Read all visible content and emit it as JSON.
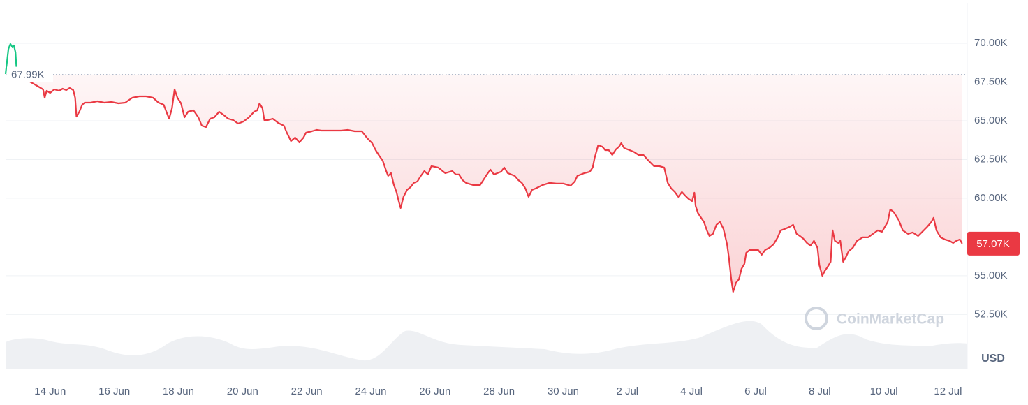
{
  "chart_data": {
    "type": "line",
    "x": [
      -1.39,
      -1.3,
      -1.24,
      -1.17,
      -1.13,
      -1.08,
      -1.04,
      -0.22,
      -0.17,
      -0.11,
      0,
      0.13,
      0.28,
      0.39,
      0.5,
      0.61,
      0.72,
      0.78,
      0.82,
      0.91,
      1.0,
      1.08,
      1.26,
      1.47,
      1.69,
      1.91,
      2.13,
      2.34,
      2.56,
      2.78,
      2.99,
      3.21,
      3.38,
      3.54,
      3.64,
      3.71,
      3.8,
      3.88,
      3.97,
      4.08,
      4.19,
      4.3,
      4.47,
      4.62,
      4.73,
      4.86,
      4.99,
      5.12,
      5.27,
      5.42,
      5.55,
      5.71,
      5.86,
      6.03,
      6.2,
      6.36,
      6.46,
      6.53,
      6.62,
      6.68,
      6.79,
      6.94,
      7.11,
      7.29,
      7.38,
      7.51,
      7.64,
      7.77,
      7.9,
      7.98,
      8.16,
      8.31,
      8.46,
      8.63,
      8.85,
      9.07,
      9.28,
      9.5,
      9.72,
      9.89,
      10.04,
      10.15,
      10.26,
      10.37,
      10.48,
      10.54,
      10.63,
      10.72,
      10.8,
      10.87,
      10.93,
      11.02,
      11.13,
      11.24,
      11.34,
      11.45,
      11.56,
      11.67,
      11.78,
      11.89,
      12.1,
      12.32,
      12.54,
      12.65,
      12.75,
      12.86,
      12.97,
      13.19,
      13.41,
      13.51,
      13.62,
      13.73,
      13.84,
      14.06,
      14.16,
      14.27,
      14.49,
      14.6,
      14.71,
      14.82,
      14.92,
      15.03,
      15.14,
      15.36,
      15.57,
      15.79,
      16.01,
      16.23,
      16.36,
      16.44,
      16.66,
      16.83,
      16.92,
      16.98,
      17.09,
      17.22,
      17.31,
      17.42,
      17.53,
      17.64,
      17.74,
      17.81,
      17.9,
      18.07,
      18.22,
      18.35,
      18.5,
      18.66,
      18.83,
      19.0,
      19.15,
      19.26,
      19.37,
      19.48,
      19.59,
      19.7,
      19.8,
      19.91,
      20.02,
      20.09,
      20.13,
      20.2,
      20.3,
      20.39,
      20.48,
      20.56,
      20.67,
      20.78,
      20.89,
      21.0,
      21.11,
      21.17,
      21.24,
      21.3,
      21.39,
      21.48,
      21.56,
      21.65,
      21.71,
      21.82,
      21.97,
      22.08,
      22.19,
      22.3,
      22.43,
      22.56,
      22.69,
      22.78,
      22.91,
      23.06,
      23.17,
      23.28,
      23.38,
      23.49,
      23.6,
      23.71,
      23.82,
      23.93,
      23.99,
      24.08,
      24.16,
      24.25,
      24.34,
      24.4,
      24.47,
      24.58,
      24.64,
      24.73,
      24.82,
      24.9,
      25.03,
      25.16,
      25.34,
      25.51,
      25.66,
      25.81,
      25.94,
      26.03,
      26.12,
      26.2,
      26.31,
      26.46,
      26.59,
      26.75,
      26.9,
      27.07,
      27.2,
      27.35,
      27.48,
      27.55,
      27.64,
      27.77,
      27.9,
      28.05,
      28.16,
      28.26,
      28.37,
      28.44
    ],
    "values": [
      68018,
      69640,
      69955,
      69730,
      69865,
      69414,
      68018,
      67027,
      66486,
      66937,
      66802,
      67027,
      66937,
      67072,
      66982,
      67117,
      66982,
      66486,
      65270,
      65586,
      66036,
      66171,
      66171,
      66261,
      66171,
      66216,
      66126,
      66171,
      66486,
      66577,
      66577,
      66486,
      66171,
      66036,
      65495,
      65135,
      65811,
      67027,
      66486,
      66126,
      65225,
      65586,
      65676,
      65225,
      64685,
      64595,
      65135,
      65225,
      65586,
      65360,
      65135,
      65045,
      64820,
      64955,
      65225,
      65586,
      65676,
      66126,
      65811,
      65045,
      65045,
      65135,
      64865,
      64685,
      64234,
      63694,
      63919,
      63604,
      63919,
      64234,
      64324,
      64414,
      64369,
      64369,
      64369,
      64369,
      64414,
      64324,
      64324,
      63874,
      63559,
      63108,
      62748,
      62432,
      61757,
      61441,
      61622,
      60856,
      60405,
      59820,
      59369,
      60090,
      60541,
      60721,
      60991,
      61081,
      61441,
      61757,
      61532,
      62072,
      61982,
      61622,
      61757,
      61532,
      61532,
      61171,
      60991,
      60856,
      60856,
      61171,
      61532,
      61847,
      61532,
      61712,
      61982,
      61622,
      61441,
      61171,
      60991,
      60631,
      60090,
      60541,
      60631,
      60856,
      60991,
      60946,
      60946,
      60811,
      61081,
      61441,
      61622,
      61712,
      61982,
      62613,
      63423,
      63333,
      63108,
      63108,
      62793,
      63153,
      63333,
      63559,
      63243,
      63108,
      62973,
      62793,
      62793,
      62432,
      62072,
      62072,
      61982,
      60991,
      60631,
      60405,
      60090,
      60405,
      60180,
      59955,
      59820,
      60360,
      59505,
      59054,
      58739,
      58468,
      57928,
      57568,
      57703,
      58288,
      58468,
      58018,
      57027,
      56126,
      54775,
      53964,
      54550,
      54775,
      55450,
      55766,
      56486,
      56667,
      56667,
      56667,
      56351,
      56667,
      56802,
      57027,
      57477,
      57928,
      58018,
      58153,
      58288,
      57703,
      57568,
      57387,
      57117,
      56937,
      57252,
      56802,
      55676,
      55000,
      55315,
      55586,
      55901,
      57928,
      57252,
      57117,
      57252,
      55901,
      56216,
      56577,
      56802,
      57252,
      57477,
      57477,
      57703,
      57928,
      57838,
      58153,
      58468,
      59279,
      59099,
      58604,
      57928,
      57703,
      57793,
      57568,
      57838,
      58153,
      58468,
      58739,
      57928,
      57477,
      57342,
      57252,
      57117,
      57252,
      57342,
      57070
    ],
    "reference": {
      "value": 67990,
      "label": "67.99K"
    },
    "current_price": {
      "value": 57070,
      "label": "57.07K"
    },
    "color_up": "#16c784",
    "color_down": "#ea3943",
    "xlim": [
      -1.39,
      28.6
    ],
    "xticks": [
      {
        "value": 0,
        "label": "14 Jun"
      },
      {
        "value": 2,
        "label": "16 Jun"
      },
      {
        "value": 4,
        "label": "18 Jun"
      },
      {
        "value": 6,
        "label": "20 Jun"
      },
      {
        "value": 8,
        "label": "22 Jun"
      },
      {
        "value": 10,
        "label": "24 Jun"
      },
      {
        "value": 12,
        "label": "26 Jun"
      },
      {
        "value": 14,
        "label": "28 Jun"
      },
      {
        "value": 16,
        "label": "30 Jun"
      },
      {
        "value": 18,
        "label": "2 Jul"
      },
      {
        "value": 20,
        "label": "4 Jul"
      },
      {
        "value": 22,
        "label": "6 Jul"
      },
      {
        "value": 24,
        "label": "8 Jul"
      },
      {
        "value": 26,
        "label": "10 Jul"
      },
      {
        "value": 28,
        "label": "12 Jul"
      }
    ],
    "ylim": [
      49000,
      72570
    ],
    "yticks": [
      {
        "value": 52500,
        "label": "52.50K"
      },
      {
        "value": 55000,
        "label": "55.00K"
      },
      {
        "value": 60000,
        "label": "60.00K"
      },
      {
        "value": 62500,
        "label": "62.50K"
      },
      {
        "value": 65000,
        "label": "65.00K"
      },
      {
        "value": 67500,
        "label": "67.50K"
      },
      {
        "value": 70000,
        "label": "70.00K"
      }
    ],
    "grid": true,
    "currency": "USD",
    "watermark": "CoinMarketCap"
  }
}
